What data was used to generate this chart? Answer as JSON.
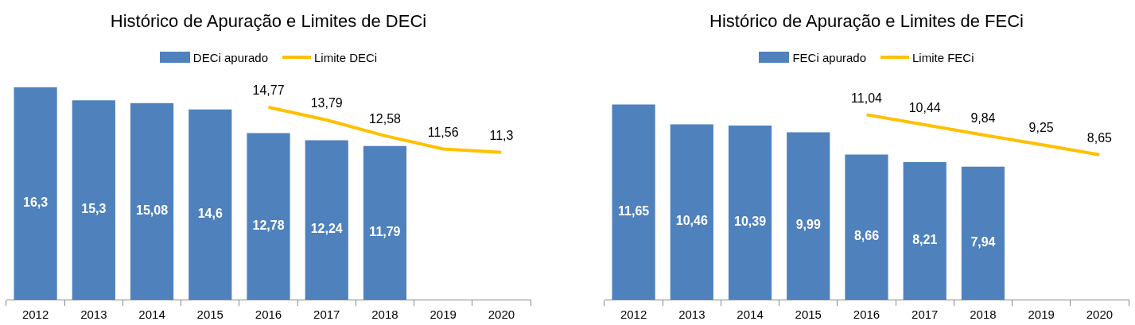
{
  "chart_data": [
    {
      "type": "bar",
      "title": "Histórico de Apuração e Limites de DECi",
      "categories": [
        "2012",
        "2013",
        "2014",
        "2015",
        "2016",
        "2017",
        "2018",
        "2019",
        "2020"
      ],
      "tick_labels": "x",
      "legend": "top",
      "series": [
        {
          "name": "DECi apurado",
          "color": "#4f81bd",
          "values": [
            16.3,
            15.3,
            15.08,
            14.6,
            12.78,
            12.24,
            11.79,
            null,
            null
          ],
          "value_labels": [
            "16,3",
            "15,3",
            "15,08",
            "14,6",
            "12,78",
            "12,24",
            "11,79",
            null,
            null
          ]
        },
        {
          "name": "Limite DECi",
          "type": "line",
          "color": "#ffc000",
          "values": [
            null,
            null,
            null,
            null,
            14.77,
            13.79,
            12.58,
            11.56,
            11.3
          ],
          "value_labels": [
            null,
            null,
            null,
            null,
            "14,77",
            "13,79",
            "12,58",
            "11,56",
            "11,3"
          ]
        }
      ]
    },
    {
      "type": "bar",
      "title": "Histórico de Apuração e Limites de FECi",
      "categories": [
        "2012",
        "2013",
        "2014",
        "2015",
        "2016",
        "2017",
        "2018",
        "2019",
        "2020"
      ],
      "tick_labels": "x",
      "legend": "top",
      "series": [
        {
          "name": "FECi apurado",
          "color": "#4f81bd",
          "values": [
            11.65,
            10.46,
            10.39,
            9.99,
            8.66,
            8.21,
            7.94,
            null,
            null
          ],
          "value_labels": [
            "11,65",
            "10,46",
            "10,39",
            "9,99",
            "8,66",
            "8,21",
            "7,94",
            null,
            null
          ]
        },
        {
          "name": "Limite FECi",
          "type": "line",
          "color": "#ffc000",
          "values": [
            null,
            null,
            null,
            null,
            11.04,
            10.44,
            9.84,
            9.25,
            8.65
          ],
          "value_labels": [
            null,
            null,
            null,
            null,
            "11,04",
            "10,44",
            "9,84",
            "9,25",
            "8,65"
          ]
        }
      ]
    }
  ]
}
